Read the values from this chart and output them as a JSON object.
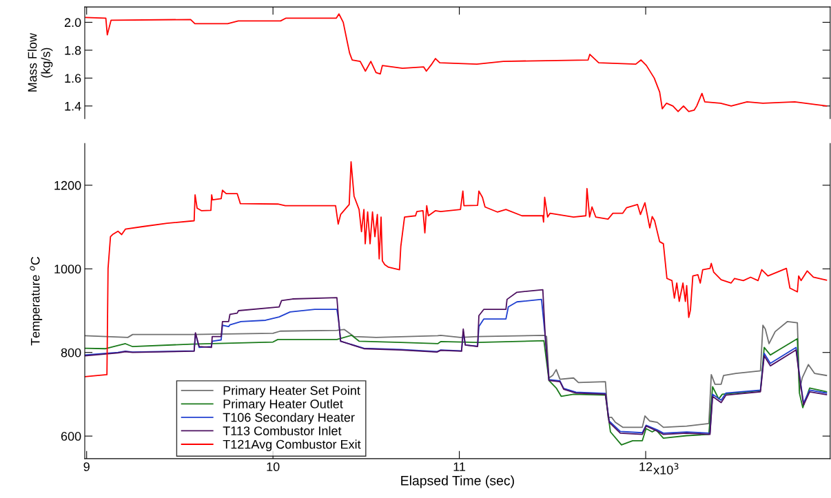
{
  "chart_data": [
    {
      "type": "line",
      "ylabel": "Mass Flow\n(kg/s)",
      "xlim": [
        8.99,
        12.99
      ],
      "ylim": [
        1.31,
        2.11
      ],
      "yticks": [
        1.4,
        1.6,
        1.8,
        {
          "value": 2,
          "label": "2.0"
        }
      ],
      "xticks": [
        9,
        10,
        11,
        12
      ],
      "tick_labels": "y",
      "series": [
        {
          "color": "#ff0000",
          "x": [
            8.995,
            9.103,
            9.111,
            9.131,
            9.558,
            9.581,
            9.757,
            9.814,
            10.041,
            10.07,
            10.34,
            10.354,
            10.377,
            10.397,
            10.411,
            10.425,
            10.468,
            10.496,
            10.525,
            10.553,
            10.576,
            10.587,
            10.695,
            10.809,
            10.823,
            10.852,
            10.872,
            10.895,
            11.094,
            11.236,
            11.691,
            11.7,
            11.748,
            11.947,
            11.975,
            12.004,
            12.046,
            12.075,
            12.089,
            12.112,
            12.146,
            12.174,
            12.203,
            12.231,
            12.26,
            12.274,
            12.302,
            12.317,
            12.402,
            12.459,
            12.544,
            12.629,
            12.8,
            12.914,
            12.97
          ],
          "values": [
            2.035,
            2.03,
            1.91,
            2.015,
            2.02,
            1.99,
            1.99,
            2.01,
            2.01,
            2.03,
            2.03,
            2.06,
            2.0,
            1.87,
            1.78,
            1.73,
            1.72,
            1.65,
            1.72,
            1.64,
            1.63,
            1.69,
            1.67,
            1.68,
            1.65,
            1.7,
            1.74,
            1.71,
            1.7,
            1.72,
            1.73,
            1.77,
            1.71,
            1.7,
            1.73,
            1.69,
            1.6,
            1.5,
            1.38,
            1.42,
            1.4,
            1.36,
            1.4,
            1.36,
            1.37,
            1.4,
            1.49,
            1.43,
            1.42,
            1.4,
            1.43,
            1.42,
            1.43,
            1.41,
            1.4
          ]
        }
      ]
    },
    {
      "type": "line",
      "ylabel": "Temperature $^{o}$C",
      "xlabel": "Elapsed Time (sec)",
      "xlim": [
        8.99,
        12.99
      ],
      "ylim": [
        546,
        1300
      ],
      "yticks": [
        600,
        800,
        1000,
        1200
      ],
      "xticks": [
        9,
        10,
        11,
        12
      ],
      "annotations": [
        "x10$^{3}$"
      ],
      "legend": "bottom left",
      "series": [
        {
          "name": "Primary Heater Set Point",
          "color": "#707070",
          "x": [
            8.99,
            9.221,
            9.247,
            9.564,
            10.0,
            10.039,
            10.343,
            10.382,
            10.435,
            10.554,
            10.884,
            10.9,
            11.006,
            11.098,
            11.454,
            11.468,
            11.481,
            11.501,
            11.52,
            11.54,
            11.613,
            11.639,
            11.784,
            11.798,
            11.817,
            11.837,
            11.877,
            11.982,
            11.996,
            12.022,
            12.062,
            12.095,
            12.22,
            12.339,
            12.352,
            12.372,
            12.405,
            12.418,
            12.484,
            12.616,
            12.629,
            12.642,
            12.662,
            12.695,
            12.761,
            12.814,
            12.825,
            12.84,
            12.873,
            12.906,
            12.97
          ],
          "values": [
            840,
            836,
            843,
            843,
            846,
            851,
            853,
            855,
            838,
            836,
            840,
            841,
            836,
            838,
            841,
            838,
            739,
            745,
            759,
            736,
            739,
            728,
            730,
            645,
            645,
            633,
            621,
            621,
            648,
            636,
            633,
            621,
            624,
            630,
            747,
            724,
            724,
            745,
            750,
            756,
            865,
            856,
            821,
            850,
            874,
            871,
            709,
            739,
            771,
            750,
            745
          ]
        },
        {
          "name": "Primary Heater Outlet",
          "color": "#1a7a1a",
          "x": [
            8.99,
            9.102,
            9.208,
            9.247,
            9.564,
            10.0,
            10.026,
            10.343,
            10.422,
            10.462,
            10.686,
            10.884,
            10.9,
            11.098,
            11.454,
            11.481,
            11.52,
            11.547,
            11.613,
            11.784,
            11.811,
            11.87,
            11.93,
            11.982,
            12.002,
            12.035,
            12.055,
            12.095,
            12.22,
            12.339,
            12.359,
            12.392,
            12.411,
            12.616,
            12.636,
            12.669,
            12.814,
            12.825,
            12.843,
            12.88,
            12.97
          ],
          "values": [
            810,
            809,
            821,
            814,
            820,
            825,
            831,
            831,
            841,
            827,
            824,
            821,
            826,
            824,
            828,
            733,
            715,
            695,
            700,
            698,
            610,
            579,
            589,
            589,
            618,
            610,
            615,
            595,
            601,
            604,
            718,
            689,
            700,
            709,
            812,
            794,
            833,
            703,
            668,
            715,
            706
          ]
        },
        {
          "name": "T106 Secondary Heater",
          "color": "#1f3fd0",
          "x": [
            8.99,
            9.168,
            9.208,
            9.247,
            9.577,
            9.584,
            9.604,
            9.67,
            9.674,
            9.722,
            9.729,
            9.762,
            9.769,
            9.828,
            9.96,
            10.033,
            10.092,
            10.224,
            10.343,
            10.353,
            10.363,
            10.488,
            10.686,
            10.88,
            10.9,
            11.012,
            11.021,
            11.032,
            11.098,
            11.105,
            11.131,
            11.25,
            11.263,
            11.309,
            11.441,
            11.461,
            11.481,
            11.54,
            11.56,
            11.626,
            11.784,
            11.804,
            11.864,
            11.982,
            12.002,
            12.062,
            12.095,
            12.22,
            12.345,
            12.359,
            12.405,
            12.431,
            12.616,
            12.636,
            12.669,
            12.807,
            12.821,
            12.847,
            12.88,
            12.97
          ],
          "values": [
            794,
            800,
            803,
            801,
            804,
            845,
            812,
            814,
            827,
            830,
            865,
            862,
            866,
            874,
            877,
            885,
            897,
            903,
            903,
            874,
            827,
            810,
            807,
            802,
            806,
            804,
            850,
            818,
            815,
            862,
            880,
            880,
            909,
            921,
            927,
            838,
            735,
            732,
            714,
            705,
            702,
            636,
            611,
            608,
            626,
            615,
            607,
            610,
            607,
            700,
            686,
            703,
            710,
            798,
            774,
            812,
            760,
            679,
            710,
            703
          ]
        },
        {
          "name": "T113 Combustor Inlet",
          "color": "#4d1060",
          "x": [
            8.99,
            9.168,
            9.208,
            9.247,
            9.577,
            9.584,
            9.604,
            9.67,
            9.674,
            9.722,
            9.729,
            9.762,
            9.769,
            9.808,
            9.815,
            10.033,
            10.046,
            10.105,
            10.343,
            10.353,
            10.363,
            10.488,
            10.686,
            10.88,
            10.9,
            11.012,
            11.021,
            11.032,
            11.098,
            11.105,
            11.131,
            11.25,
            11.256,
            11.309,
            11.448,
            11.461,
            11.481,
            11.54,
            11.56,
            11.626,
            11.784,
            11.804,
            11.864,
            11.982,
            12.002,
            12.062,
            12.095,
            12.22,
            12.345,
            12.359,
            12.405,
            12.431,
            12.616,
            12.636,
            12.669,
            12.807,
            12.821,
            12.847,
            12.88,
            12.97
          ],
          "values": [
            792,
            799,
            802,
            800,
            803,
            847,
            814,
            812,
            838,
            838,
            874,
            874,
            891,
            894,
            900,
            909,
            924,
            928,
            931,
            874,
            827,
            809,
            806,
            801,
            805,
            803,
            856,
            818,
            814,
            888,
            903,
            903,
            927,
            944,
            950,
            838,
            733,
            730,
            712,
            703,
            700,
            633,
            607,
            604,
            624,
            612,
            604,
            607,
            604,
            695,
            680,
            698,
            706,
            792,
            768,
            806,
            756,
            674,
            706,
            699
          ]
        },
        {
          "name": "T121Avg Combustor Exit",
          "color": "#ff0000",
          "x": [
            8.99,
            9.109,
            9.115,
            9.128,
            9.142,
            9.168,
            9.188,
            9.208,
            9.3,
            9.432,
            9.577,
            9.582,
            9.593,
            9.617,
            9.667,
            9.671,
            9.676,
            9.722,
            9.729,
            9.749,
            9.808,
            9.825,
            10.026,
            10.066,
            10.336,
            10.35,
            10.363,
            10.409,
            10.419,
            10.435,
            10.462,
            10.475,
            10.488,
            10.495,
            10.508,
            10.521,
            10.534,
            10.547,
            10.56,
            10.57,
            10.58,
            10.587,
            10.6,
            10.62,
            10.679,
            10.686,
            10.706,
            10.765,
            10.772,
            10.805,
            10.815,
            10.825,
            10.834,
            10.871,
            10.9,
            11.006,
            11.019,
            11.025,
            11.098,
            11.105,
            11.124,
            11.138,
            11.204,
            11.25,
            11.336,
            11.448,
            11.452,
            11.458,
            11.474,
            11.487,
            11.613,
            11.679,
            11.685,
            11.699,
            11.712,
            11.732,
            11.798,
            11.824,
            11.877,
            11.897,
            11.956,
            11.972,
            11.996,
            12.022,
            12.035,
            12.048,
            12.075,
            12.095,
            12.114,
            12.141,
            12.154,
            12.167,
            12.18,
            12.2,
            12.213,
            12.22,
            12.231,
            12.24,
            12.253,
            12.28,
            12.293,
            12.306,
            12.345,
            12.352,
            12.365,
            12.405,
            12.458,
            12.477,
            12.524,
            12.563,
            12.603,
            12.623,
            12.656,
            12.755,
            12.774,
            12.814,
            12.821,
            12.834,
            12.867,
            12.9,
            12.97
          ],
          "values": [
            742,
            747,
            1001,
            1077,
            1083,
            1090,
            1082,
            1095,
            1101,
            1109,
            1115,
            1177,
            1145,
            1139,
            1140,
            1177,
            1165,
            1168,
            1188,
            1180,
            1180,
            1156,
            1155,
            1151,
            1151,
            1107,
            1130,
            1154,
            1256,
            1174,
            1142,
            1089,
            1142,
            1060,
            1136,
            1060,
            1136,
            1077,
            1130,
            1024,
            1124,
            1019,
            1010,
            1004,
            998,
            1054,
            1124,
            1127,
            1137,
            1139,
            1086,
            1151,
            1127,
            1139,
            1137,
            1142,
            1186,
            1151,
            1152,
            1186,
            1171,
            1148,
            1136,
            1142,
            1127,
            1127,
            1112,
            1171,
            1124,
            1133,
            1124,
            1127,
            1192,
            1124,
            1148,
            1124,
            1119,
            1133,
            1133,
            1146,
            1154,
            1130,
            1158,
            1098,
            1125,
            1115,
            1065,
            1060,
            977,
            972,
            930,
            966,
            922,
            966,
            922,
            960,
            884,
            901,
            983,
            986,
            966,
            998,
            1001,
            1013,
            992,
            974,
            966,
            977,
            972,
            980,
            972,
            998,
            983,
            1001,
            954,
            945,
            983,
            972,
            995,
            980,
            973
          ]
        }
      ]
    }
  ]
}
